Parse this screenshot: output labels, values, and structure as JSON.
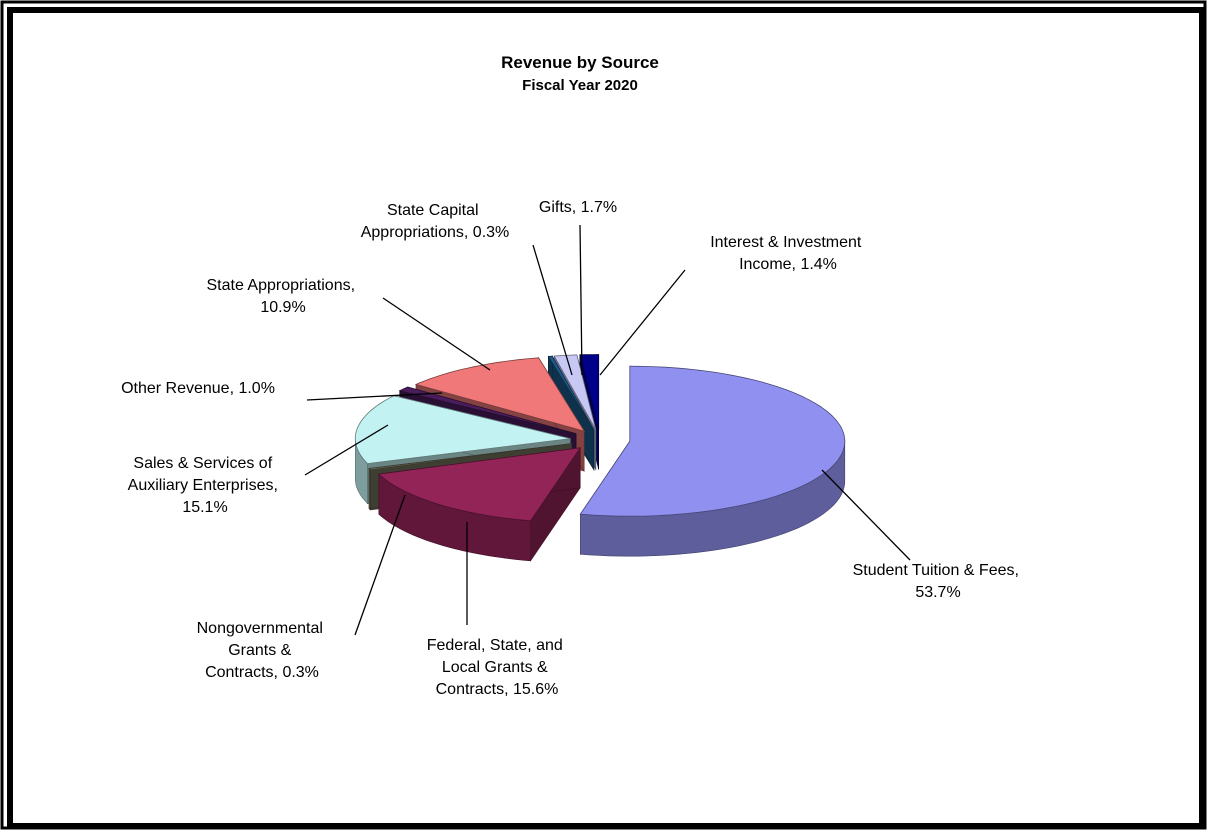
{
  "chart_data": {
    "type": "pie3d",
    "title": "Revenue by Source",
    "subtitle": "Fiscal Year 2020",
    "categories": [
      "Student Tuition & Fees, 53.7%",
      "Federal, State, and Local Grants & Contracts, 15.6%",
      "Nongovernmental Grants & Contracts, 0.3%",
      "Sales & Services of Auxiliary Enterprises, 15.1%",
      "Other Revenue, 1.0%",
      "State Appropriations, 10.9%",
      "State Capital Appropriations, 0.3%",
      "Gifts, 1.7%",
      "Interest & Investment Income, 1.4%"
    ],
    "values": [
      53.7,
      15.6,
      0.3,
      15.1,
      1.0,
      10.9,
      0.3,
      1.7,
      1.4
    ],
    "colors": [
      "#9090f0",
      "#932457",
      "#70705a",
      "#c2f2f2",
      "#4a1c5c",
      "#f07878",
      "#1c5a8a",
      "#c8c8f4",
      "#000088"
    ]
  }
}
